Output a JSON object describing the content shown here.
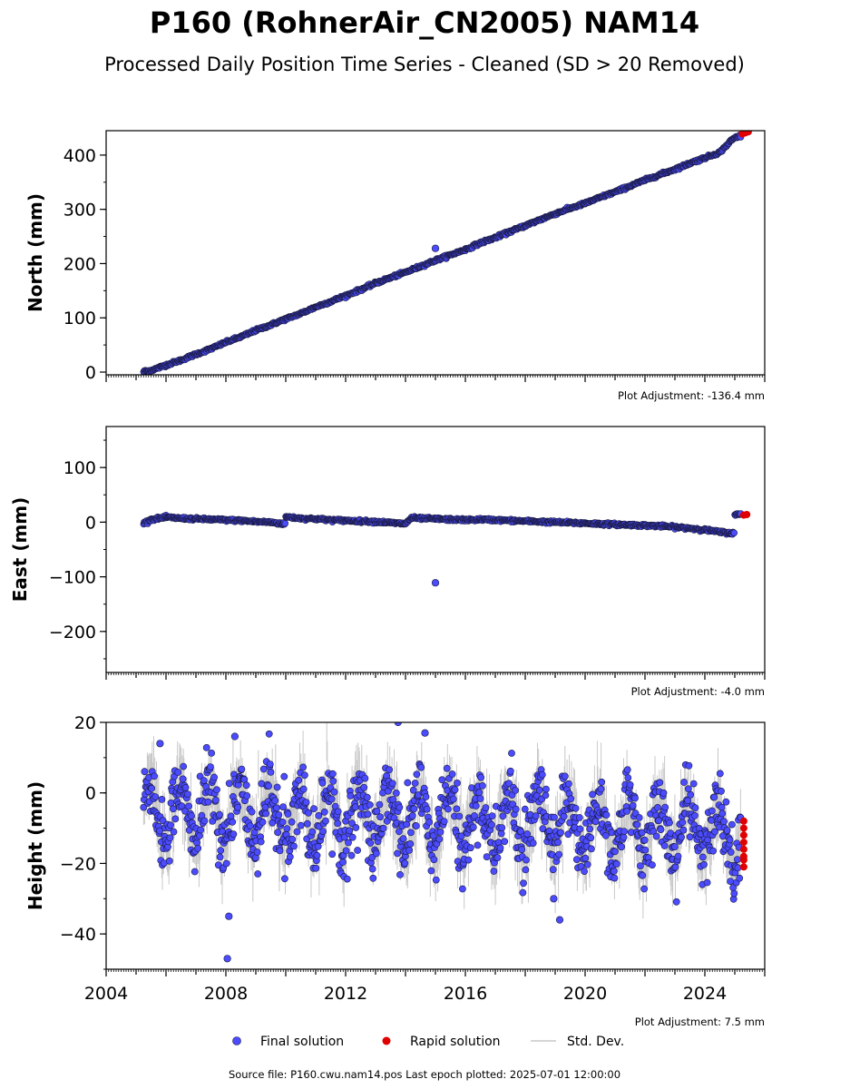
{
  "title": "P160 (RohnerAir_CN2005) NAM14",
  "subtitle": "Processed Daily Position Time Series - Cleaned (SD > 20 Removed)",
  "source_note": "Source file: P160.cwu.nam14.pos  Last epoch plotted: 2025-07-01 12:00:00",
  "legend": {
    "final": "Final solution",
    "rapid": "Rapid solution",
    "stddev": "Std. Dev."
  },
  "colors": {
    "final_fill": "#4b4bff",
    "final_edge": "#1a1a40",
    "rapid": "#e00000",
    "stddev": "#c8c8c8"
  },
  "chart_data": [
    {
      "type": "scatter",
      "ylabel": "North (mm)",
      "plot_adjustment": "Plot Adjustment: -136.4 mm",
      "xlim": [
        2004.0,
        2026.0
      ],
      "ylim": [
        -5,
        445
      ],
      "yticks": [
        0,
        100,
        200,
        300,
        400
      ],
      "xticks": [],
      "series": [
        {
          "name": "Final solution",
          "x": [
            2005.25,
            2005.5,
            2006.0,
            2006.5,
            2007.0,
            2007.5,
            2008.0,
            2008.5,
            2009.0,
            2009.5,
            2010.0,
            2010.5,
            2011.0,
            2011.5,
            2012.0,
            2012.5,
            2013.0,
            2013.5,
            2014.0,
            2014.5,
            2015.0,
            2015.5,
            2016.0,
            2016.5,
            2017.0,
            2017.5,
            2018.0,
            2018.5,
            2019.0,
            2019.5,
            2020.0,
            2020.5,
            2021.0,
            2021.5,
            2022.0,
            2022.5,
            2023.0,
            2023.5,
            2024.0,
            2024.5,
            2024.9,
            2025.0,
            2025.2
          ],
          "y": [
            1,
            3,
            13,
            22,
            33,
            43,
            55,
            65,
            77,
            87,
            98,
            108,
            120,
            130,
            141,
            152,
            164,
            174,
            184,
            195,
            206,
            216,
            226,
            238,
            248,
            259,
            270,
            281,
            292,
            302,
            311,
            322,
            332,
            343,
            354,
            364,
            374,
            385,
            395,
            405,
            428,
            432,
            436
          ]
        },
        {
          "name": "Final solution (outlier)",
          "x": [
            2015.0
          ],
          "y": [
            228
          ]
        },
        {
          "name": "Rapid solution",
          "x": [
            2025.25,
            2025.35,
            2025.45
          ],
          "y": [
            439,
            441,
            443
          ]
        }
      ]
    },
    {
      "type": "scatter",
      "ylabel": "East (mm)",
      "plot_adjustment": "Plot Adjustment: -4.0 mm",
      "xlim": [
        2004.0,
        2026.0
      ],
      "ylim": [
        -275,
        175
      ],
      "yticks": [
        100,
        0,
        -100,
        -200
      ],
      "xticks": [],
      "series": [
        {
          "name": "Final solution",
          "x": [
            2005.25,
            2005.5,
            2006.0,
            2006.5,
            2007.0,
            2007.5,
            2008.0,
            2008.5,
            2009.0,
            2009.5,
            2009.9,
            2010.0,
            2010.5,
            2011.0,
            2011.5,
            2012.0,
            2012.5,
            2013.0,
            2013.5,
            2014.0,
            2014.2,
            2014.5,
            2015.0,
            2015.5,
            2016.0,
            2016.5,
            2017.0,
            2017.5,
            2018.0,
            2018.5,
            2019.0,
            2019.5,
            2020.0,
            2020.5,
            2021.0,
            2021.5,
            2022.0,
            2022.5,
            2023.0,
            2023.5,
            2024.0,
            2024.5,
            2024.9,
            2025.0,
            2025.2
          ],
          "y": [
            -2,
            5,
            9,
            7,
            6,
            5,
            4,
            3,
            1,
            0,
            -3,
            10,
            7,
            6,
            4,
            3,
            2,
            1,
            -1,
            -3,
            8,
            7,
            6,
            5,
            4,
            5,
            4,
            3,
            2,
            1,
            0,
            -1,
            -2,
            -3,
            -4,
            -5,
            -6,
            -7,
            -9,
            -11,
            -14,
            -18,
            -20,
            13,
            15
          ]
        },
        {
          "name": "Final solution (outlier)",
          "x": [
            2015.0
          ],
          "y": [
            -111
          ]
        },
        {
          "name": "Rapid solution",
          "x": [
            2025.3,
            2025.4
          ],
          "y": [
            13,
            14
          ]
        }
      ]
    },
    {
      "type": "scatter",
      "ylabel": "Height (mm)",
      "plot_adjustment": "Plot Adjustment: 7.5 mm",
      "xlim": [
        2004.0,
        2026.0
      ],
      "ylim": [
        -50,
        20
      ],
      "yticks": [
        20,
        0,
        -20,
        -40
      ],
      "xticks": [
        2004,
        2008,
        2012,
        2016,
        2020,
        2024
      ],
      "series": [
        {
          "name": "Final solution (seasonal)",
          "x": [
            2005.25,
            2025.2
          ],
          "y": [
            -5,
            -11
          ],
          "annual_amplitude": 8,
          "scatter_sd": 5
        },
        {
          "name": "Final solution (outliers)",
          "x": [
            2008.05,
            2008.1,
            2013.75,
            2014.65,
            2018.95,
            2019.15,
            2005.8,
            2008.3
          ],
          "y": [
            -47,
            -35,
            20,
            17,
            -30,
            -36,
            14,
            16
          ]
        },
        {
          "name": "Rapid solution",
          "x": [
            2025.3,
            2025.3,
            2025.3,
            2025.3,
            2025.3,
            2025.3,
            2025.3,
            2025.3
          ],
          "y": [
            -8,
            -10,
            -12,
            -14,
            -16,
            -18,
            -19,
            -21
          ]
        }
      ]
    }
  ]
}
